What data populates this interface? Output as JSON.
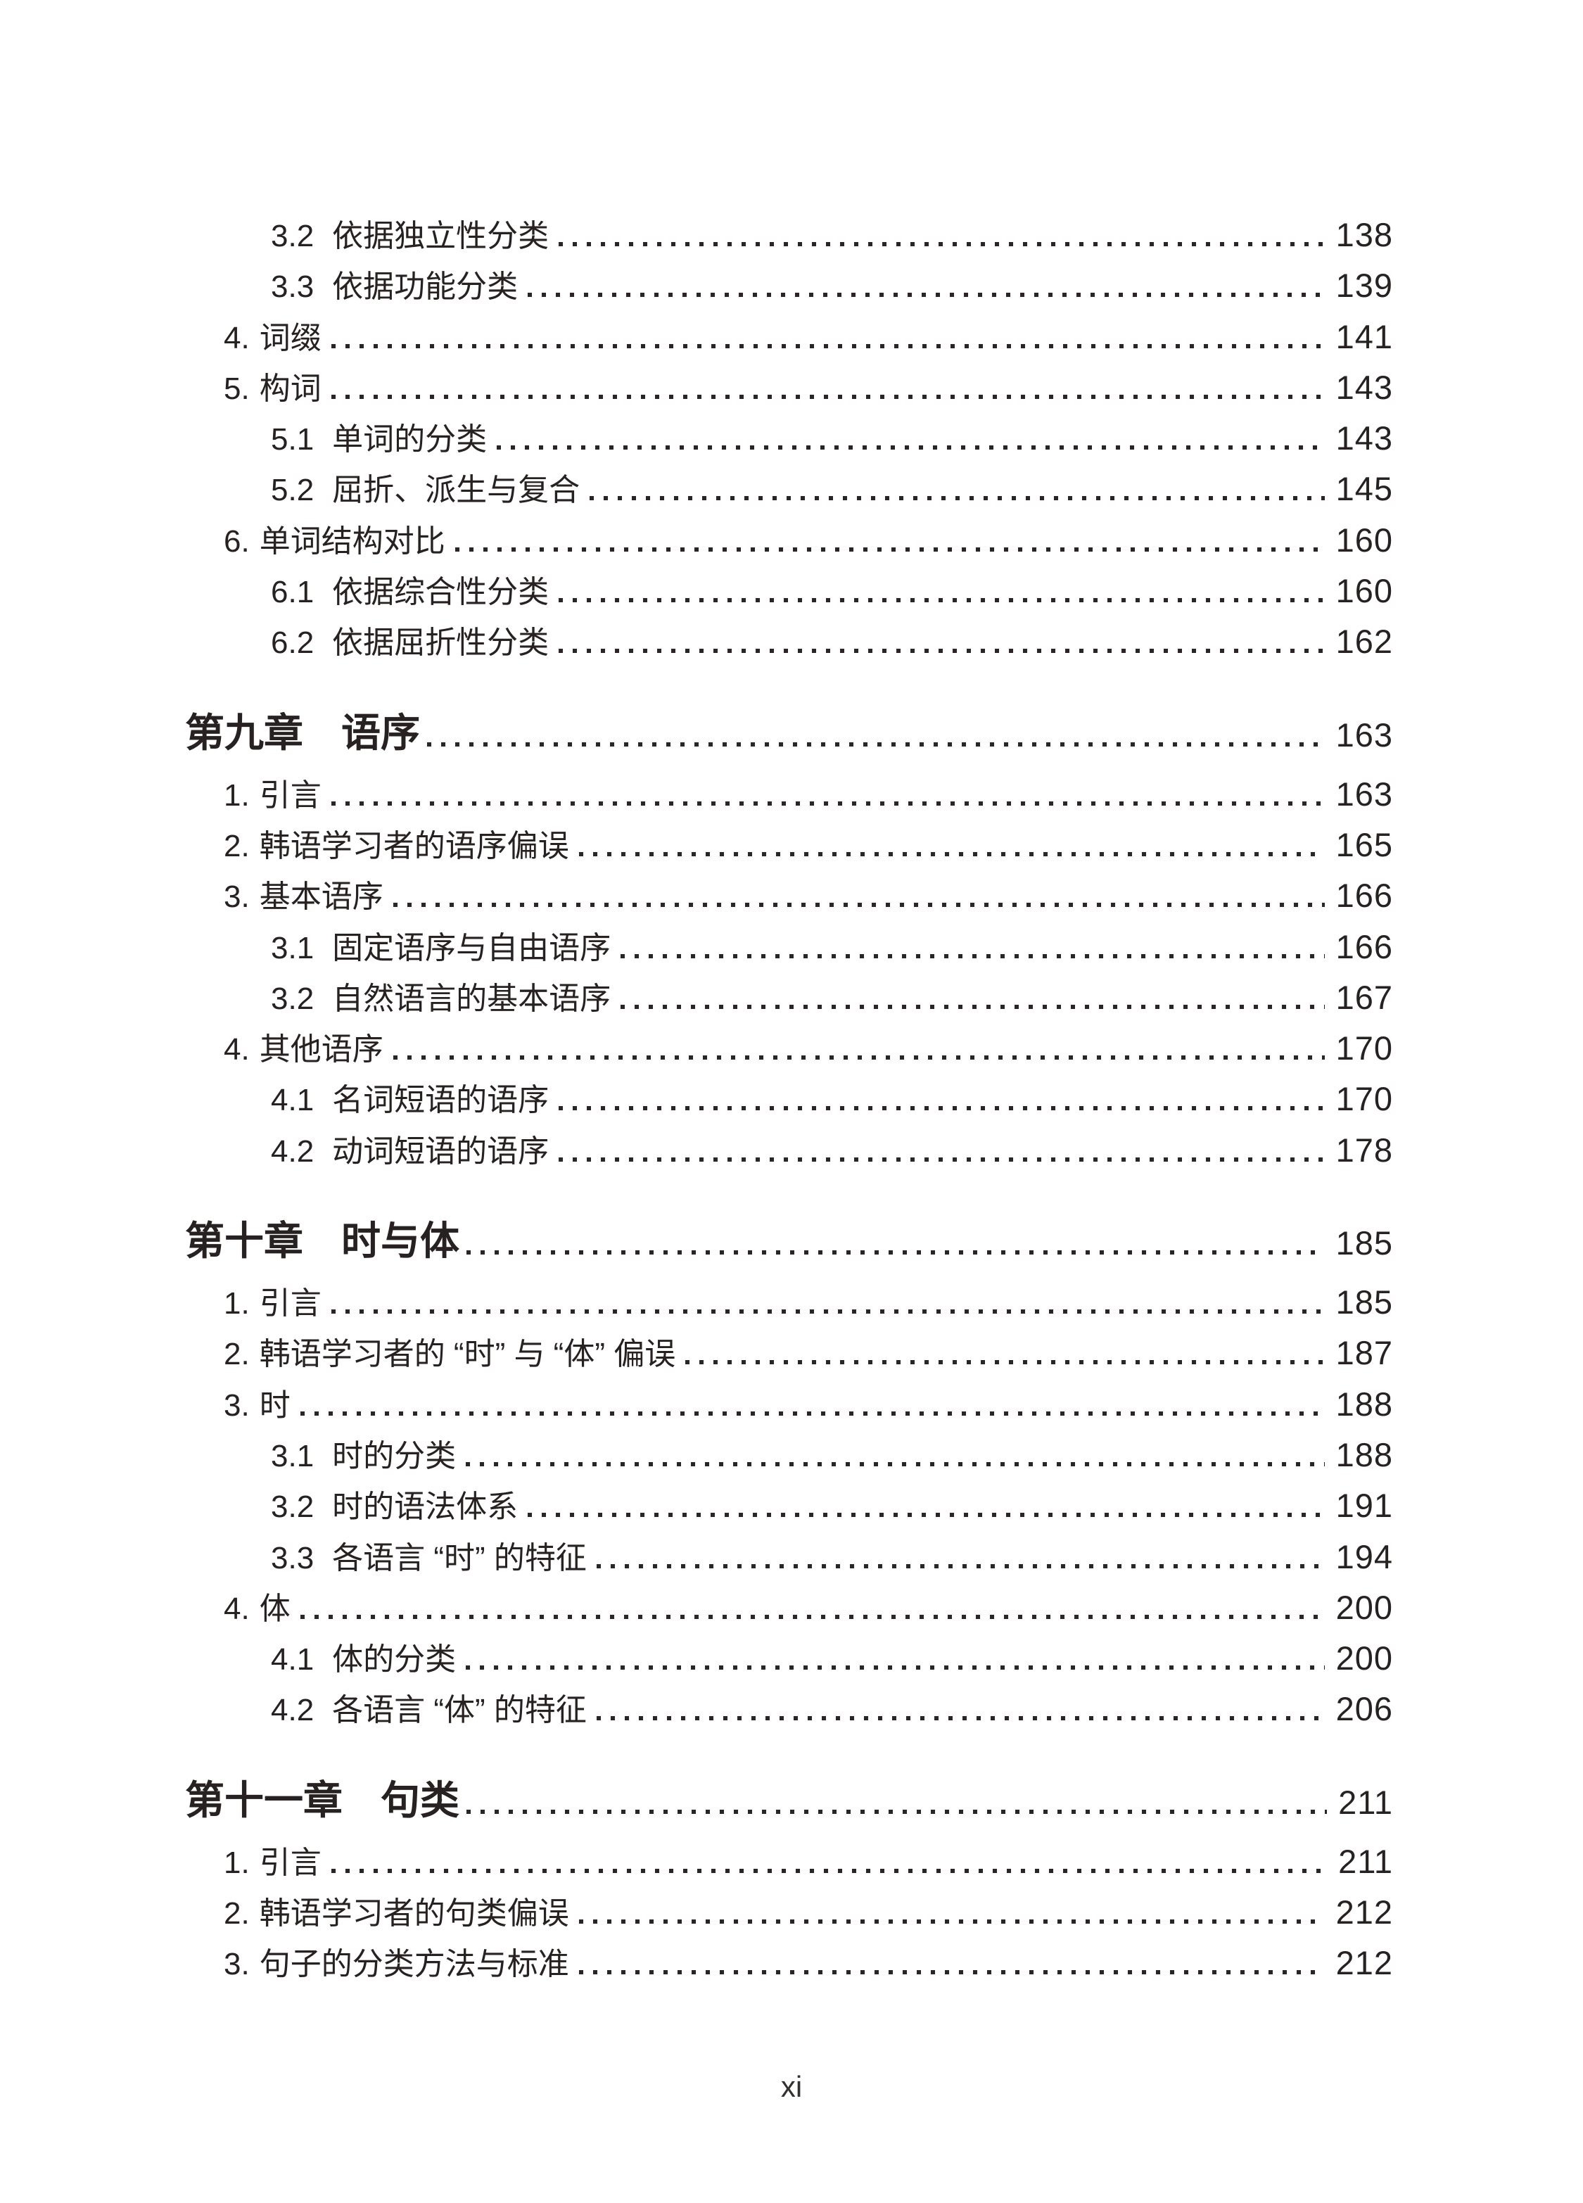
{
  "colors": {
    "text": "#272221",
    "background": "#ffffff"
  },
  "toc": {
    "blocks": [
      {
        "type": "entries",
        "items": [
          {
            "level": 2,
            "num": "3.2",
            "title": "依据独立性分类",
            "page": "138"
          },
          {
            "level": 2,
            "num": "3.3",
            "title": "依据功能分类",
            "page": "139"
          },
          {
            "level": 1,
            "num": "4.",
            "title": "词缀",
            "page": "141"
          },
          {
            "level": 1,
            "num": "5.",
            "title": "构词",
            "page": "143"
          },
          {
            "level": 2,
            "num": "5.1",
            "title": "单词的分类",
            "page": "143"
          },
          {
            "level": 2,
            "num": "5.2",
            "title": "屈折、派生与复合",
            "page": "145"
          },
          {
            "level": 1,
            "num": "6.",
            "title": "单词结构对比",
            "page": "160"
          },
          {
            "level": 2,
            "num": "6.1",
            "title": "依据综合性分类",
            "page": "160"
          },
          {
            "level": 2,
            "num": "6.2",
            "title": "依据屈折性分类",
            "page": "162"
          }
        ]
      },
      {
        "type": "chapter",
        "prefix": "第九章",
        "title": "语序",
        "page": "163"
      },
      {
        "type": "entries",
        "items": [
          {
            "level": 1,
            "num": "1.",
            "title": "引言",
            "page": "163"
          },
          {
            "level": 1,
            "num": "2.",
            "title": "韩语学习者的语序偏误",
            "page": "165"
          },
          {
            "level": 1,
            "num": "3.",
            "title": "基本语序",
            "page": "166"
          },
          {
            "level": 2,
            "num": "3.1",
            "title": "固定语序与自由语序",
            "page": "166"
          },
          {
            "level": 2,
            "num": "3.2",
            "title": "自然语言的基本语序",
            "page": "167"
          },
          {
            "level": 1,
            "num": "4.",
            "title": "其他语序",
            "page": "170"
          },
          {
            "level": 2,
            "num": "4.1",
            "title": "名词短语的语序",
            "page": "170"
          },
          {
            "level": 2,
            "num": "4.2",
            "title": "动词短语的语序",
            "page": "178"
          }
        ]
      },
      {
        "type": "chapter",
        "prefix": "第十章",
        "title": "时与体",
        "page": "185"
      },
      {
        "type": "entries",
        "items": [
          {
            "level": 1,
            "num": "1.",
            "title": "引言",
            "page": "185"
          },
          {
            "level": 1,
            "num": "2.",
            "title": "韩语学习者的 “时” 与 “体” 偏误",
            "page": "187"
          },
          {
            "level": 1,
            "num": "3.",
            "title": "时",
            "page": "188"
          },
          {
            "level": 2,
            "num": "3.1",
            "title": "时的分类",
            "page": "188"
          },
          {
            "level": 2,
            "num": "3.2",
            "title": "时的语法体系",
            "page": "191"
          },
          {
            "level": 2,
            "num": "3.3",
            "title": "各语言 “时” 的特征",
            "page": "194"
          },
          {
            "level": 1,
            "num": "4.",
            "title": "体",
            "page": "200"
          },
          {
            "level": 2,
            "num": "4.1",
            "title": "体的分类",
            "page": "200"
          },
          {
            "level": 2,
            "num": "4.2",
            "title": "各语言 “体” 的特征",
            "page": "206"
          }
        ]
      },
      {
        "type": "chapter",
        "prefix": "第十一章",
        "title": "句类",
        "page": "211"
      },
      {
        "type": "entries",
        "items": [
          {
            "level": 1,
            "num": "1.",
            "title": "引言",
            "page": "211"
          },
          {
            "level": 1,
            "num": "2.",
            "title": "韩语学习者的句类偏误",
            "page": "212"
          },
          {
            "level": 1,
            "num": "3.",
            "title": "句子的分类方法与标准",
            "page": "212"
          }
        ]
      }
    ]
  },
  "footer": {
    "page_label": "xi"
  }
}
